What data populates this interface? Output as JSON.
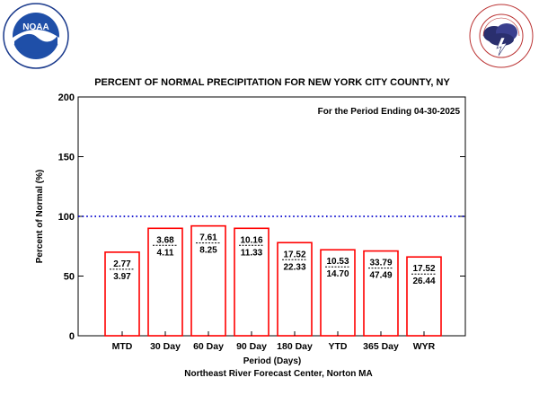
{
  "logos": {
    "noaa": {
      "center_text": "NOAA",
      "ring_text": "NATIONAL OCEANIC AND ATMOSPHERIC ADMINISTRATION · U.S. DEPARTMENT OF COMMERCE"
    },
    "nws": {
      "ring_text": "NATIONAL WEATHER SERVICE"
    }
  },
  "chart_data": {
    "type": "bar",
    "title": "PERCENT OF NORMAL PRECIPITATION FOR NEW YORK CITY COUNTY, NY",
    "annotation": "For the Period Ending 04-30-2025",
    "xlabel": "Period (Days)",
    "ylabel": "Percent of Normal (%)",
    "credit": "Northeast River Forecast Center, Norton MA",
    "ylim": [
      0,
      200
    ],
    "yticks": [
      0,
      50,
      100,
      150,
      200
    ],
    "reference_line": {
      "value": 100,
      "style": "dotted",
      "color": "#0000cc"
    },
    "bar_color": "#ff0000",
    "categories": [
      "MTD",
      "30 Day",
      "60 Day",
      "90 Day",
      "180 Day",
      "YTD",
      "365 Day",
      "WYR"
    ],
    "values": [
      70,
      90,
      92,
      90,
      78,
      72,
      71,
      66
    ],
    "observed": [
      "2.77",
      "3.68",
      "7.61",
      "10.16",
      "17.52",
      "10.53",
      "33.79",
      "17.52"
    ],
    "normal": [
      "3.97",
      "4.11",
      "8.25",
      "11.33",
      "22.33",
      "14.70",
      "47.49",
      "26.44"
    ],
    "grid": false
  }
}
